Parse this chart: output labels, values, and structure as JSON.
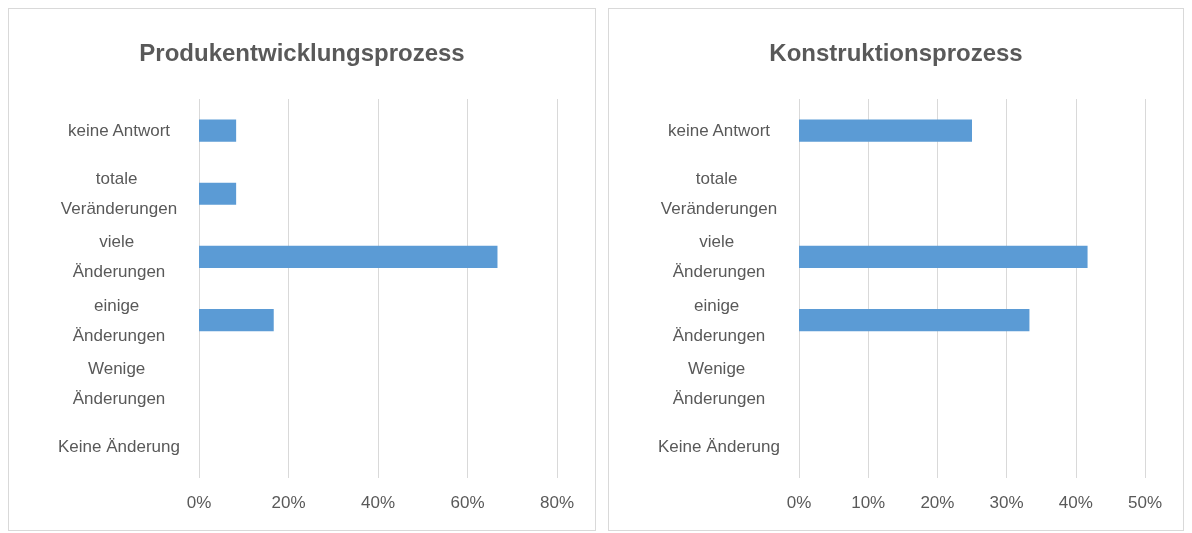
{
  "chart_data": [
    {
      "type": "bar",
      "orientation": "horizontal",
      "title": "Produkentwicklungsprozess",
      "categories": [
        "keine Antwort",
        "totale Veränderungen",
        "viele Änderungen",
        "einige Änderungen",
        "Wenige Änderungen",
        "Keine Änderung"
      ],
      "values": [
        8.3,
        8.3,
        66.7,
        16.7,
        0,
        0
      ],
      "color": "#5b9bd5",
      "xlim": [
        0,
        80
      ],
      "xticks": [
        {
          "value": 0,
          "label": "0%"
        },
        {
          "value": 20,
          "label": "20%"
        },
        {
          "value": 40,
          "label": "40%"
        },
        {
          "value": 60,
          "label": "60%"
        },
        {
          "value": 80,
          "label": "80%"
        }
      ],
      "grid": "x"
    },
    {
      "type": "bar",
      "orientation": "horizontal",
      "title": "Konstruktionsprozess",
      "categories": [
        "keine Antwort",
        "totale Veränderungen",
        "viele Änderungen",
        "einige Änderungen",
        "Wenige Änderungen",
        "Keine Änderung"
      ],
      "values": [
        25,
        0,
        41.7,
        33.3,
        0,
        0
      ],
      "color": "#5b9bd5",
      "xlim": [
        0,
        50
      ],
      "xticks": [
        {
          "value": 0,
          "label": "0%"
        },
        {
          "value": 10,
          "label": "10%"
        },
        {
          "value": 20,
          "label": "20%"
        },
        {
          "value": 30,
          "label": "30%"
        },
        {
          "value": 40,
          "label": "40%"
        },
        {
          "value": 50,
          "label": "50%"
        }
      ],
      "grid": "x"
    }
  ]
}
